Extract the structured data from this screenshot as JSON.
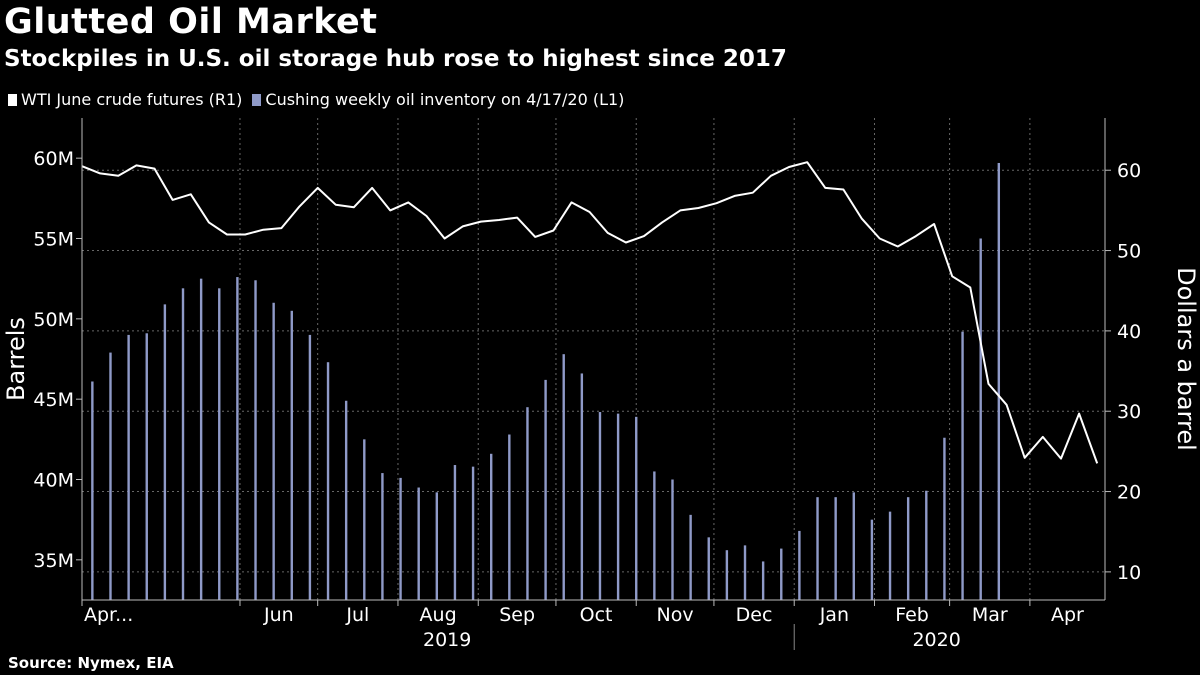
{
  "header": {
    "title": "Glutted Oil Market",
    "subtitle": "Stockpiles in U.S. oil storage hub rose to highest since 2017"
  },
  "legend": {
    "items": [
      {
        "label": "WTI June crude futures (R1)",
        "color": "#ffffff"
      },
      {
        "label": "Cushing weekly oil inventory on 4/17/20 (L1)",
        "color": "#8f9ac8"
      }
    ]
  },
  "footer": {
    "source": "Source: Nymex, EIA"
  },
  "colors": {
    "background": "#000000",
    "bars": "#8f9ac8",
    "line": "#ffffff",
    "grid": "#666666"
  },
  "chart_data": {
    "type": "bar+line",
    "x_range": [
      "2019-04-01",
      "2020-04-30"
    ],
    "left_axis": {
      "label": "Barrels",
      "ticks": [
        35,
        40,
        45,
        50,
        55,
        60
      ],
      "tick_labels": [
        "35M",
        "40M",
        "45M",
        "50M",
        "55M",
        "60M"
      ],
      "range_millions": [
        32.5,
        62.5
      ],
      "units": "million barrels"
    },
    "right_axis": {
      "label": "Dollars a barrel",
      "ticks": [
        10,
        20,
        30,
        40,
        50,
        60
      ],
      "tick_labels": [
        "10",
        "20",
        "30",
        "40",
        "50",
        "60"
      ],
      "range": [
        6.5,
        66.5
      ]
    },
    "x_month_labels": [
      {
        "date": "2019-04-01",
        "label": "Apr..."
      },
      {
        "date": "2019-06-01",
        "label": "Jun"
      },
      {
        "date": "2019-07-01",
        "label": "Jul"
      },
      {
        "date": "2019-08-01",
        "label": "Aug"
      },
      {
        "date": "2019-09-01",
        "label": "Sep"
      },
      {
        "date": "2019-10-01",
        "label": "Oct"
      },
      {
        "date": "2019-11-01",
        "label": "Nov"
      },
      {
        "date": "2019-12-01",
        "label": "Dec"
      },
      {
        "date": "2020-01-01",
        "label": "Jan"
      },
      {
        "date": "2020-02-01",
        "label": "Feb"
      },
      {
        "date": "2020-03-01",
        "label": "Mar"
      },
      {
        "date": "2020-04-01",
        "label": "Apr"
      }
    ],
    "x_year_labels": [
      {
        "date": "2019-08-20",
        "label": "2019"
      },
      {
        "date": "2020-02-25",
        "label": "2020"
      }
    ],
    "grid": true,
    "series": [
      {
        "name": "Cushing weekly oil inventory on 4/17/20 (L1)",
        "type": "bar",
        "axis": "left",
        "points": [
          [
            "2019-04-05",
            46.1
          ],
          [
            "2019-04-12",
            47.9
          ],
          [
            "2019-04-19",
            49.0
          ],
          [
            "2019-04-26",
            49.1
          ],
          [
            "2019-05-03",
            50.9
          ],
          [
            "2019-05-10",
            51.9
          ],
          [
            "2019-05-17",
            52.5
          ],
          [
            "2019-05-24",
            51.9
          ],
          [
            "2019-05-31",
            52.6
          ],
          [
            "2019-06-07",
            52.4
          ],
          [
            "2019-06-14",
            51.0
          ],
          [
            "2019-06-21",
            50.5
          ],
          [
            "2019-06-28",
            49.0
          ],
          [
            "2019-07-05",
            47.3
          ],
          [
            "2019-07-12",
            44.9
          ],
          [
            "2019-07-19",
            42.5
          ],
          [
            "2019-07-26",
            40.4
          ],
          [
            "2019-08-02",
            40.1
          ],
          [
            "2019-08-09",
            39.5
          ],
          [
            "2019-08-16",
            39.2
          ],
          [
            "2019-08-23",
            40.9
          ],
          [
            "2019-08-30",
            40.8
          ],
          [
            "2019-09-06",
            41.6
          ],
          [
            "2019-09-13",
            42.8
          ],
          [
            "2019-09-20",
            44.5
          ],
          [
            "2019-09-27",
            46.2
          ],
          [
            "2019-10-04",
            47.8
          ],
          [
            "2019-10-11",
            46.6
          ],
          [
            "2019-10-18",
            44.2
          ],
          [
            "2019-10-25",
            44.1
          ],
          [
            "2019-11-01",
            43.9
          ],
          [
            "2019-11-08",
            40.5
          ],
          [
            "2019-11-15",
            40.0
          ],
          [
            "2019-11-22",
            37.8
          ],
          [
            "2019-11-29",
            36.4
          ],
          [
            "2019-12-06",
            35.6
          ],
          [
            "2019-12-13",
            35.9
          ],
          [
            "2019-12-20",
            34.9
          ],
          [
            "2019-12-27",
            35.7
          ],
          [
            "2020-01-03",
            36.8
          ],
          [
            "2020-01-10",
            38.9
          ],
          [
            "2020-01-17",
            38.9
          ],
          [
            "2020-01-24",
            39.2
          ],
          [
            "2020-01-31",
            37.5
          ],
          [
            "2020-02-07",
            38.0
          ],
          [
            "2020-02-14",
            38.9
          ],
          [
            "2020-02-21",
            39.3
          ],
          [
            "2020-02-28",
            42.6
          ],
          [
            "2020-03-06",
            49.2
          ],
          [
            "2020-03-13",
            55.0
          ],
          [
            "2020-03-20",
            59.7
          ]
        ]
      },
      {
        "name": "WTI June crude futures (R1)",
        "type": "line",
        "axis": "right",
        "points": [
          [
            "2019-04-01",
            60.5
          ],
          [
            "2019-04-08",
            59.6
          ],
          [
            "2019-04-15",
            59.3
          ],
          [
            "2019-04-22",
            60.6
          ],
          [
            "2019-04-29",
            60.2
          ],
          [
            "2019-05-06",
            56.3
          ],
          [
            "2019-05-13",
            57.0
          ],
          [
            "2019-05-20",
            53.5
          ],
          [
            "2019-05-27",
            52.0
          ],
          [
            "2019-06-03",
            52.0
          ],
          [
            "2019-06-10",
            52.6
          ],
          [
            "2019-06-17",
            52.8
          ],
          [
            "2019-06-24",
            55.5
          ],
          [
            "2019-07-01",
            57.8
          ],
          [
            "2019-07-08",
            55.7
          ],
          [
            "2019-07-15",
            55.4
          ],
          [
            "2019-07-22",
            57.8
          ],
          [
            "2019-07-29",
            55.0
          ],
          [
            "2019-08-05",
            56.0
          ],
          [
            "2019-08-12",
            54.3
          ],
          [
            "2019-08-19",
            51.5
          ],
          [
            "2019-08-26",
            53.0
          ],
          [
            "2019-09-02",
            53.6
          ],
          [
            "2019-09-09",
            53.8
          ],
          [
            "2019-09-16",
            54.1
          ],
          [
            "2019-09-23",
            51.7
          ],
          [
            "2019-09-30",
            52.5
          ],
          [
            "2019-10-07",
            56.0
          ],
          [
            "2019-10-14",
            54.8
          ],
          [
            "2019-10-21",
            52.2
          ],
          [
            "2019-10-28",
            51.0
          ],
          [
            "2019-11-04",
            51.8
          ],
          [
            "2019-11-11",
            53.5
          ],
          [
            "2019-11-18",
            55.0
          ],
          [
            "2019-11-25",
            55.3
          ],
          [
            "2019-12-02",
            55.9
          ],
          [
            "2019-12-09",
            56.8
          ],
          [
            "2019-12-16",
            57.2
          ],
          [
            "2019-12-23",
            59.3
          ],
          [
            "2019-12-30",
            60.4
          ],
          [
            "2020-01-06",
            61.0
          ],
          [
            "2020-01-13",
            57.8
          ],
          [
            "2020-01-20",
            57.6
          ],
          [
            "2020-01-27",
            54.0
          ],
          [
            "2020-02-03",
            51.5
          ],
          [
            "2020-02-10",
            50.5
          ],
          [
            "2020-02-17",
            51.8
          ],
          [
            "2020-02-24",
            53.3
          ],
          [
            "2020-03-02",
            46.8
          ],
          [
            "2020-03-09",
            45.4
          ],
          [
            "2020-03-16",
            33.4
          ],
          [
            "2020-03-23",
            30.8
          ],
          [
            "2020-03-30",
            24.2
          ],
          [
            "2020-04-06",
            26.8
          ],
          [
            "2020-04-13",
            24.1
          ],
          [
            "2020-04-20",
            29.7
          ],
          [
            "2020-04-27",
            23.5
          ]
        ]
      }
    ]
  }
}
